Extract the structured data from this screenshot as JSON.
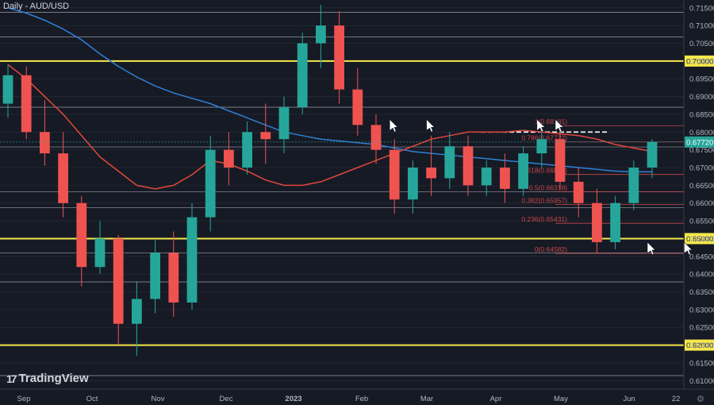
{
  "header": {
    "title": "Daily - AUD/USD"
  },
  "branding": {
    "logo_text": "TradingView",
    "logo_mark": "17"
  },
  "settings_icon": "gear-icon",
  "colors": {
    "background": "#161a25",
    "up": "#26a69a",
    "down": "#ef5350",
    "ma_red": "#e0483b",
    "ma_blue": "#2f80d6",
    "key_level": "#f5e84a",
    "fib": "#c8474a",
    "grid": "#2a2e39",
    "price_label_bg": "#26a69a"
  },
  "chart_data": {
    "type": "candlestick",
    "title": "Daily - AUD/USD",
    "y_axis_ticks": [
      "0.71500",
      "0.71000",
      "0.70500",
      "0.70000",
      "0.69500",
      "0.69000",
      "0.68500",
      "0.68000",
      "0.67500",
      "0.67000",
      "0.66500",
      "0.66000",
      "0.65500",
      "0.65000",
      "0.64500",
      "0.64000",
      "0.63500",
      "0.63000",
      "0.62500",
      "0.62000",
      "0.61500",
      "0.61000"
    ],
    "ylim": [
      0.6085,
      0.7163
    ],
    "x_axis_ticks": [
      "Sep",
      "Oct",
      "Nov",
      "Dec",
      "2023",
      "Feb",
      "Mar",
      "Apr",
      "May",
      "Jun",
      "22"
    ],
    "current_price_label": "0.67720",
    "current_price": 0.6772,
    "key_levels": [
      {
        "label": "0.70000",
        "value": 0.7
      },
      {
        "label": "0.65000",
        "value": 0.65
      },
      {
        "label": "0.62000",
        "value": 0.62
      }
    ],
    "horizontal_lines": [
      0.7137,
      0.7068,
      0.687,
      0.6758,
      0.6632,
      0.6587,
      0.646,
      0.6378,
      0.6114
    ],
    "fibonacci": [
      {
        "label": "1(0.68181)",
        "value": 0.68181
      },
      {
        "label": "0.786(0.67722)",
        "value": 0.67722
      },
      {
        "label": "0.618(0.66806)",
        "value": 0.66806
      },
      {
        "label": "0.5(0.66318)",
        "value": 0.66318
      },
      {
        "label": "0.382(0.65957)",
        "value": 0.65957
      },
      {
        "label": "0.236(0.65431)",
        "value": 0.65431
      },
      {
        "label": "0(0.64582)",
        "value": 0.64582
      }
    ],
    "resistance_dashed": 0.68,
    "annotations": [
      {
        "type": "arrow",
        "date_index": 21
      },
      {
        "type": "arrow",
        "date_index": 23
      },
      {
        "type": "arrow",
        "date_index": 29
      },
      {
        "type": "arrow",
        "date_index": 30
      },
      {
        "type": "arrow",
        "date_index": 35
      },
      {
        "type": "arrow",
        "date_index": 37
      }
    ],
    "candles": [
      {
        "o": 0.688,
        "h": 0.699,
        "l": 0.684,
        "c": 0.696
      },
      {
        "o": 0.696,
        "h": 0.6985,
        "l": 0.678,
        "c": 0.68
      },
      {
        "o": 0.68,
        "h": 0.689,
        "l": 0.6705,
        "c": 0.674
      },
      {
        "o": 0.674,
        "h": 0.68,
        "l": 0.656,
        "c": 0.66
      },
      {
        "o": 0.66,
        "h": 0.662,
        "l": 0.6365,
        "c": 0.642
      },
      {
        "o": 0.642,
        "h": 0.655,
        "l": 0.64,
        "c": 0.65
      },
      {
        "o": 0.65,
        "h": 0.651,
        "l": 0.62,
        "c": 0.626
      },
      {
        "o": 0.626,
        "h": 0.638,
        "l": 0.617,
        "c": 0.633
      },
      {
        "o": 0.633,
        "h": 0.65,
        "l": 0.629,
        "c": 0.646
      },
      {
        "o": 0.646,
        "h": 0.652,
        "l": 0.628,
        "c": 0.632
      },
      {
        "o": 0.632,
        "h": 0.66,
        "l": 0.63,
        "c": 0.656
      },
      {
        "o": 0.656,
        "h": 0.679,
        "l": 0.652,
        "c": 0.675
      },
      {
        "o": 0.675,
        "h": 0.68,
        "l": 0.665,
        "c": 0.67
      },
      {
        "o": 0.67,
        "h": 0.683,
        "l": 0.668,
        "c": 0.68
      },
      {
        "o": 0.68,
        "h": 0.688,
        "l": 0.671,
        "c": 0.678
      },
      {
        "o": 0.678,
        "h": 0.69,
        "l": 0.674,
        "c": 0.687
      },
      {
        "o": 0.687,
        "h": 0.708,
        "l": 0.685,
        "c": 0.705
      },
      {
        "o": 0.705,
        "h": 0.7158,
        "l": 0.698,
        "c": 0.71
      },
      {
        "o": 0.71,
        "h": 0.714,
        "l": 0.688,
        "c": 0.692
      },
      {
        "o": 0.692,
        "h": 0.698,
        "l": 0.679,
        "c": 0.682
      },
      {
        "o": 0.682,
        "h": 0.685,
        "l": 0.671,
        "c": 0.675
      },
      {
        "o": 0.675,
        "h": 0.678,
        "l": 0.657,
        "c": 0.661
      },
      {
        "o": 0.661,
        "h": 0.672,
        "l": 0.657,
        "c": 0.67
      },
      {
        "o": 0.67,
        "h": 0.679,
        "l": 0.662,
        "c": 0.667
      },
      {
        "o": 0.667,
        "h": 0.68,
        "l": 0.664,
        "c": 0.676
      },
      {
        "o": 0.676,
        "h": 0.679,
        "l": 0.662,
        "c": 0.665
      },
      {
        "o": 0.665,
        "h": 0.672,
        "l": 0.662,
        "c": 0.67
      },
      {
        "o": 0.67,
        "h": 0.674,
        "l": 0.66,
        "c": 0.664
      },
      {
        "o": 0.664,
        "h": 0.676,
        "l": 0.662,
        "c": 0.674
      },
      {
        "o": 0.674,
        "h": 0.681,
        "l": 0.67,
        "c": 0.678
      },
      {
        "o": 0.678,
        "h": 0.68,
        "l": 0.664,
        "c": 0.666
      },
      {
        "o": 0.666,
        "h": 0.67,
        "l": 0.656,
        "c": 0.66
      },
      {
        "o": 0.66,
        "h": 0.664,
        "l": 0.6458,
        "c": 0.649
      },
      {
        "o": 0.649,
        "h": 0.662,
        "l": 0.647,
        "c": 0.66
      },
      {
        "o": 0.66,
        "h": 0.672,
        "l": 0.658,
        "c": 0.67
      },
      {
        "o": 0.67,
        "h": 0.678,
        "l": 0.667,
        "c": 0.6772
      }
    ],
    "ma_red": [
      0.699,
      0.695,
      0.69,
      0.685,
      0.679,
      0.673,
      0.669,
      0.665,
      0.664,
      0.665,
      0.668,
      0.672,
      0.671,
      0.669,
      0.6665,
      0.665,
      0.665,
      0.666,
      0.668,
      0.67,
      0.672,
      0.674,
      0.676,
      0.678,
      0.679,
      0.68,
      0.68,
      0.68,
      0.6805,
      0.68,
      0.6795,
      0.679,
      0.678,
      0.6765,
      0.6755,
      0.6745
    ],
    "ma_blue": [
      0.715,
      0.7135,
      0.7115,
      0.709,
      0.706,
      0.702,
      0.6985,
      0.6955,
      0.693,
      0.691,
      0.6895,
      0.688,
      0.686,
      0.684,
      0.682,
      0.68,
      0.679,
      0.678,
      0.6775,
      0.677,
      0.6765,
      0.6755,
      0.6745,
      0.674,
      0.6735,
      0.673,
      0.6725,
      0.672,
      0.6715,
      0.671,
      0.6705,
      0.67,
      0.6695,
      0.669,
      0.6688,
      0.6688
    ]
  }
}
